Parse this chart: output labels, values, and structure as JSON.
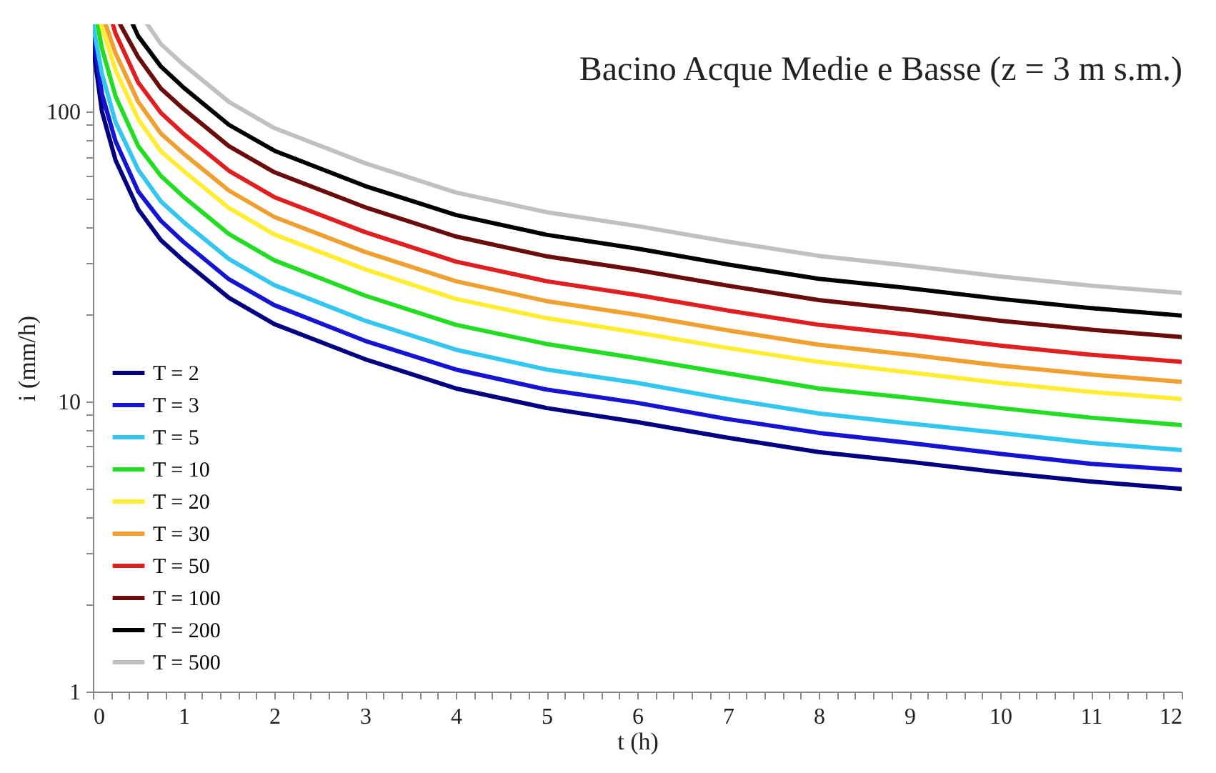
{
  "chart_data": {
    "type": "line",
    "title": "Bacino Acque Medie e Basse (z = 3 m s.m.)",
    "xlabel": "t (h)",
    "ylabel": "i (mm/h)",
    "log": "y",
    "legend": "bottom left",
    "xlim": [
      0,
      12
    ],
    "ylim": [
      1,
      200
    ],
    "xticks": [
      0,
      {
        "value": 0.2,
        "label": null
      },
      {
        "value": 0.4,
        "label": null
      },
      {
        "value": 0.6,
        "label": null
      },
      {
        "value": 0.8,
        "label": null
      },
      1,
      {
        "value": 1.2,
        "label": null
      },
      {
        "value": 1.4,
        "label": null
      },
      {
        "value": 1.6,
        "label": null
      },
      {
        "value": 1.8,
        "label": null
      },
      2,
      {
        "value": 2.2,
        "label": null
      },
      {
        "value": 2.4,
        "label": null
      },
      {
        "value": 2.6,
        "label": null
      },
      {
        "value": 2.8,
        "label": null
      },
      3,
      {
        "value": 3.2,
        "label": null
      },
      {
        "value": 3.4,
        "label": null
      },
      {
        "value": 3.6,
        "label": null
      },
      {
        "value": 3.8,
        "label": null
      },
      4,
      {
        "value": 4.2,
        "label": null
      },
      {
        "value": 4.4,
        "label": null
      },
      {
        "value": 4.6,
        "label": null
      },
      {
        "value": 4.8,
        "label": null
      },
      5,
      {
        "value": 5.2,
        "label": null
      },
      {
        "value": 5.4,
        "label": null
      },
      {
        "value": 5.6,
        "label": null
      },
      {
        "value": 5.8,
        "label": null
      },
      6,
      {
        "value": 6.2,
        "label": null
      },
      {
        "value": 6.4,
        "label": null
      },
      {
        "value": 6.6,
        "label": null
      },
      {
        "value": 6.8,
        "label": null
      },
      7,
      {
        "value": 7.2,
        "label": null
      },
      {
        "value": 7.4,
        "label": null
      },
      {
        "value": 7.6,
        "label": null
      },
      {
        "value": 7.8,
        "label": null
      },
      8,
      {
        "value": 8.2,
        "label": null
      },
      {
        "value": 8.4,
        "label": null
      },
      {
        "value": 8.6,
        "label": null
      },
      {
        "value": 8.8,
        "label": null
      },
      9,
      {
        "value": 9.2,
        "label": null
      },
      {
        "value": 9.4,
        "label": null
      },
      {
        "value": 9.6,
        "label": null
      },
      {
        "value": 9.8,
        "label": null
      },
      10,
      {
        "value": 10.2,
        "label": null
      },
      {
        "value": 10.4,
        "label": null
      },
      {
        "value": 10.6,
        "label": null
      },
      {
        "value": 10.8,
        "label": null
      },
      11,
      {
        "value": 11.2,
        "label": null
      },
      {
        "value": 11.4,
        "label": null
      },
      {
        "value": 11.6,
        "label": null
      },
      {
        "value": 11.8,
        "label": null
      },
      12
    ],
    "yticks": [
      1,
      {
        "value": 2,
        "label": null
      },
      {
        "value": 3,
        "label": null
      },
      {
        "value": 4,
        "label": null
      },
      {
        "value": 5,
        "label": null
      },
      {
        "value": 6,
        "label": null
      },
      {
        "value": 7,
        "label": null
      },
      {
        "value": 8,
        "label": null
      },
      {
        "value": 9,
        "label": null
      },
      10,
      {
        "value": 20,
        "label": null
      },
      {
        "value": 30,
        "label": null
      },
      {
        "value": 40,
        "label": null
      },
      {
        "value": 50,
        "label": null
      },
      {
        "value": 60,
        "label": null
      },
      {
        "value": 70,
        "label": null
      },
      {
        "value": 80,
        "label": null
      },
      {
        "value": 90,
        "label": null
      },
      100
    ],
    "series": [
      {
        "name": "T = 2",
        "color": "#000080",
        "x": [
          0,
          0.1,
          0.25,
          0.5,
          0.75,
          1,
          1.5,
          2,
          3,
          4,
          5,
          6,
          7,
          8,
          9,
          10,
          11,
          12
        ],
        "values": [
          170,
          100,
          68,
          46,
          36,
          30.6,
          22.8,
          18.5,
          14.0,
          11.1,
          9.5,
          8.5,
          7.5,
          6.7,
          6.2,
          5.7,
          5.3,
          5.0
        ]
      },
      {
        "name": "T = 3",
        "color": "#1414d2",
        "x": [
          0,
          0.1,
          0.25,
          0.5,
          0.75,
          1,
          1.5,
          2,
          3,
          4,
          5,
          6,
          7,
          8,
          9,
          10,
          11,
          12
        ],
        "values": [
          185,
          115,
          79,
          53,
          42,
          35.5,
          26.4,
          21.5,
          16.2,
          12.9,
          11.0,
          9.9,
          8.7,
          7.8,
          7.2,
          6.6,
          6.1,
          5.8
        ]
      },
      {
        "name": "T = 5",
        "color": "#33c6ee",
        "x": [
          0,
          0.1,
          0.25,
          0.5,
          0.75,
          1,
          1.5,
          2,
          3,
          4,
          5,
          6,
          7,
          8,
          9,
          10,
          11,
          12
        ],
        "values": [
          200,
          135,
          92,
          63,
          49,
          41.6,
          31.0,
          25.2,
          19.0,
          15.1,
          12.9,
          11.6,
          10.2,
          9.1,
          8.4,
          7.8,
          7.2,
          6.8
        ]
      },
      {
        "name": "T = 10",
        "color": "#22dd22",
        "x": [
          0.05,
          0.1,
          0.25,
          0.5,
          0.75,
          1,
          1.5,
          2,
          3,
          4,
          5,
          6,
          7,
          8,
          9,
          10,
          11,
          12
        ],
        "values": [
          200,
          165,
          113,
          76,
          60,
          50.8,
          37.8,
          30.7,
          23.2,
          18.4,
          15.8,
          14.1,
          12.5,
          11.1,
          10.3,
          9.5,
          8.8,
          8.3
        ]
      },
      {
        "name": "T = 20",
        "color": "#ffec33",
        "x": [
          0.09,
          0.25,
          0.5,
          0.75,
          1,
          1.5,
          2,
          3,
          4,
          5,
          6,
          7,
          8,
          9,
          10,
          11,
          12
        ],
        "values": [
          200,
          139,
          94,
          73,
          62.4,
          46.5,
          37.7,
          28.6,
          22.6,
          19.4,
          17.3,
          15.3,
          13.7,
          12.6,
          11.6,
          10.8,
          10.2
        ]
      },
      {
        "name": "T = 30",
        "color": "#f0a030",
        "x": [
          0.14,
          0.25,
          0.5,
          0.75,
          1,
          1.5,
          2,
          3,
          4,
          5,
          6,
          7,
          8,
          9,
          10,
          11,
          12
        ],
        "values": [
          200,
          159,
          108,
          84,
          71.6,
          53.4,
          43.3,
          32.8,
          26.0,
          22.2,
          19.9,
          17.6,
          15.7,
          14.5,
          13.3,
          12.4,
          11.7
        ]
      },
      {
        "name": "T = 50",
        "color": "#e02020",
        "x": [
          0.22,
          0.25,
          0.5,
          0.75,
          1,
          1.5,
          2,
          3,
          4,
          5,
          6,
          7,
          8,
          9,
          10,
          11,
          12
        ],
        "values": [
          200,
          186,
          126,
          99,
          83.8,
          62.5,
          50.7,
          38.4,
          30.4,
          26.0,
          23.3,
          20.6,
          18.4,
          17.0,
          15.6,
          14.5,
          13.7
        ]
      },
      {
        "name": "T = 100",
        "color": "#6b0c0c",
        "x": [
          0.3,
          0.5,
          0.75,
          1,
          1.5,
          2,
          3,
          4,
          5,
          6,
          7,
          8,
          9,
          10,
          11,
          12
        ],
        "values": [
          200,
          154,
          120,
          102,
          76,
          61.8,
          46.8,
          37.1,
          31.7,
          28.4,
          25.1,
          22.4,
          20.7,
          19.0,
          17.7,
          16.7
        ]
      },
      {
        "name": "T = 200",
        "color": "#000000",
        "x": [
          0.44,
          0.5,
          0.75,
          1,
          1.5,
          2,
          3,
          4,
          5,
          6,
          7,
          8,
          9,
          10,
          11,
          12
        ],
        "values": [
          200,
          182,
          143,
          121,
          90,
          73.3,
          55.4,
          44.0,
          37.6,
          33.7,
          29.7,
          26.5,
          24.6,
          22.6,
          21.0,
          19.8
        ]
      },
      {
        "name": "T = 500",
        "color": "#c0c0c0",
        "x": [
          0.6,
          0.75,
          1,
          1.5,
          2,
          3,
          4,
          5,
          6,
          7,
          8,
          9,
          10,
          11,
          12
        ],
        "values": [
          200,
          171,
          145,
          108,
          87.7,
          66.4,
          52.6,
          45.0,
          40.3,
          35.6,
          31.8,
          29.4,
          27.0,
          25.1,
          23.7
        ]
      }
    ]
  }
}
